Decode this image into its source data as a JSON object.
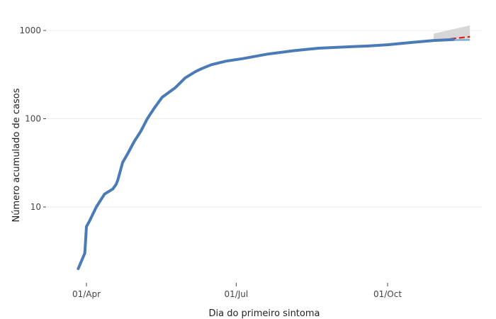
{
  "chart_data": {
    "type": "line",
    "title": "",
    "xlabel": "Dia do primeiro sintoma",
    "ylabel": "Número acumulado de casos",
    "yscale": "log",
    "ylim": [
      1.5,
      1400
    ],
    "xlim": [
      "2020-03-23",
      "2020-11-20"
    ],
    "x_ticks": [
      {
        "date": "2020-04-01",
        "label": "01/Apr"
      },
      {
        "date": "2020-07-01",
        "label": "01/Jul"
      },
      {
        "date": "2020-10-01",
        "label": "01/Oct"
      }
    ],
    "y_ticks": [
      {
        "value": 10,
        "label": "10"
      },
      {
        "value": 100,
        "label": "100"
      },
      {
        "value": 1000,
        "label": "1000"
      }
    ],
    "grid": true,
    "legend": "none",
    "colors": {
      "observed": "#4a7bb7",
      "forecast": "#e41a1c",
      "band": "#d3d3d3"
    },
    "series": [
      {
        "role": "observed",
        "x": [
          "2020-03-27",
          "2020-03-31",
          "2020-04-01",
          "2020-04-03",
          "2020-04-07",
          "2020-04-12",
          "2020-04-17",
          "2020-04-19",
          "2020-04-20",
          "2020-04-23",
          "2020-04-26",
          "2020-04-30",
          "2020-05-04",
          "2020-05-08",
          "2020-05-12",
          "2020-05-17",
          "2020-05-25",
          "2020-05-31",
          "2020-06-06",
          "2020-06-10",
          "2020-06-16",
          "2020-06-25",
          "2020-07-05",
          "2020-07-20",
          "2020-08-05",
          "2020-08-20",
          "2020-09-05",
          "2020-09-20",
          "2020-10-01",
          "2020-10-15",
          "2020-10-29",
          "2020-11-05",
          "2020-11-10"
        ],
        "y": [
          2,
          3,
          6,
          7,
          10,
          14,
          16,
          18,
          20,
          32,
          40,
          55,
          72,
          100,
          130,
          175,
          225,
          290,
          340,
          370,
          410,
          450,
          480,
          540,
          590,
          630,
          650,
          670,
          690,
          730,
          770,
          780,
          790
        ]
      },
      {
        "role": "forecast",
        "x": [
          "2020-10-29",
          "2020-11-05",
          "2020-11-10",
          "2020-11-15",
          "2020-11-20"
        ],
        "y": [
          775,
          790,
          810,
          830,
          850
        ]
      },
      {
        "role": "forecast-lower",
        "x": [
          "2020-10-29",
          "2020-11-05",
          "2020-11-10",
          "2020-11-15",
          "2020-11-20"
        ],
        "y": [
          770,
          775,
          778,
          780,
          782
        ]
      },
      {
        "role": "forecast-interval",
        "x": [
          "2020-10-29",
          "2020-11-20"
        ],
        "upper": [
          920,
          1140
        ],
        "lower": [
          760,
          760
        ]
      }
    ]
  }
}
